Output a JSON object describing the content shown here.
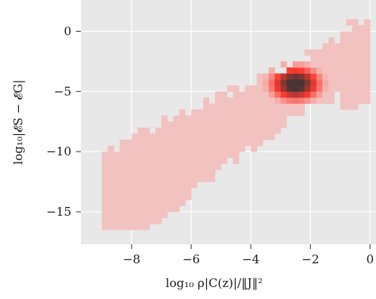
{
  "chart_data": {
    "type": "heatmap",
    "title": "",
    "xlabel": "log₁₀ ρ|C(z)|/‖J‖²",
    "ylabel": "log₁₀|𝓔S − 𝓔G|",
    "xlim": [
      -9.7,
      0.2
    ],
    "ylim": [
      -17.7,
      2.6
    ],
    "x_ticks": [
      -8,
      -6,
      -4,
      -2,
      0
    ],
    "y_ticks": [
      0,
      -5,
      -10,
      -15
    ],
    "x_tick_labels": [
      "−8",
      "−6",
      "−4",
      "−2",
      "0"
    ],
    "y_tick_labels": [
      "0",
      "−5",
      "−10",
      "−15"
    ],
    "grid": true,
    "background_color": "#e8e8e8",
    "color_low": "#f2c2c0",
    "color_mid": "#ff3b2f",
    "color_high": "#4a3433",
    "density_core": {
      "x": -2.6,
      "y": -4.6
    },
    "density_axis_slope": 1.3
  }
}
